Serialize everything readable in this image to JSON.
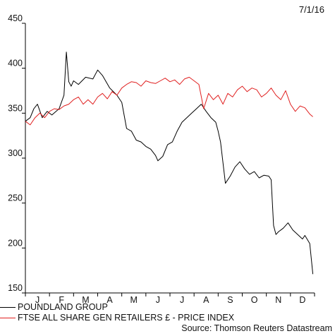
{
  "chart_data": {
    "type": "line",
    "date_label": "7/1/16",
    "x_tick_labels": [
      "J",
      "F",
      "M",
      "A",
      "M",
      "J",
      "J",
      "A",
      "S",
      "O",
      "N",
      "D"
    ],
    "yticks": [
      150,
      200,
      250,
      300,
      350,
      400,
      450
    ],
    "ylim": [
      150,
      450
    ],
    "grid": false,
    "series": [
      {
        "name": "POUNDLAND GROUP",
        "color": "#000000",
        "x": [
          0,
          0.2,
          0.35,
          0.5,
          0.7,
          0.9,
          1.1,
          1.4,
          1.6,
          1.7,
          1.8,
          1.9,
          2.0,
          2.2,
          2.5,
          2.8,
          3.0,
          3.2,
          3.5,
          3.8,
          4.0,
          4.2,
          4.4,
          4.6,
          4.8,
          5.0,
          5.2,
          5.4,
          5.5,
          5.7,
          5.9,
          6.1,
          6.3,
          6.5,
          6.7,
          6.9,
          7.1,
          7.3,
          7.5,
          7.7,
          7.9,
          8.0,
          8.1,
          8.3,
          8.5,
          8.7,
          8.9,
          9.1,
          9.3,
          9.5,
          9.7,
          9.9,
          10.1,
          10.2,
          10.3,
          10.4,
          10.5,
          10.7,
          10.9,
          11.1,
          11.3,
          11.5,
          11.6,
          11.8,
          11.93
        ],
        "values": [
          341,
          345,
          355,
          360,
          345,
          352,
          348,
          355,
          370,
          418,
          385,
          380,
          386,
          382,
          390,
          388,
          398,
          392,
          378,
          370,
          362,
          333,
          330,
          320,
          318,
          313,
          310,
          303,
          297,
          302,
          315,
          318,
          330,
          340,
          345,
          350,
          355,
          360,
          352,
          345,
          340,
          330,
          318,
          272,
          280,
          290,
          296,
          288,
          282,
          285,
          278,
          281,
          280,
          276,
          225,
          215,
          218,
          222,
          228,
          220,
          215,
          210,
          214,
          205,
          171
        ]
      },
      {
        "name": "FTSE ALL SHARE GEN RETAILERS £ - PRICE INDEX",
        "color": "#e02020",
        "x": [
          0,
          0.2,
          0.4,
          0.6,
          0.8,
          1.0,
          1.2,
          1.4,
          1.6,
          1.8,
          2.0,
          2.2,
          2.4,
          2.6,
          2.8,
          3.0,
          3.2,
          3.4,
          3.6,
          3.8,
          4.0,
          4.2,
          4.4,
          4.6,
          4.8,
          5.0,
          5.2,
          5.4,
          5.6,
          5.8,
          6.0,
          6.2,
          6.4,
          6.6,
          6.8,
          7.0,
          7.2,
          7.4,
          7.6,
          7.8,
          8.0,
          8.2,
          8.4,
          8.6,
          8.8,
          9.0,
          9.2,
          9.4,
          9.6,
          9.8,
          10.0,
          10.2,
          10.4,
          10.6,
          10.8,
          11.0,
          11.2,
          11.4,
          11.6,
          11.8,
          11.93
        ],
        "values": [
          341,
          337,
          345,
          350,
          345,
          352,
          355,
          354,
          358,
          360,
          365,
          368,
          360,
          365,
          360,
          368,
          372,
          366,
          374,
          370,
          378,
          382,
          385,
          384,
          380,
          386,
          384,
          383,
          386,
          389,
          385,
          387,
          382,
          388,
          390,
          386,
          382,
          355,
          372,
          365,
          370,
          360,
          372,
          368,
          376,
          380,
          374,
          378,
          376,
          368,
          372,
          378,
          370,
          365,
          375,
          360,
          352,
          358,
          356,
          349,
          346
        ]
      }
    ]
  },
  "legend": {
    "items": [
      {
        "label": "POUNDLAND GROUP",
        "color": "#000000"
      },
      {
        "label": "FTSE ALL SHARE GEN RETAILERS £ - PRICE INDEX",
        "color": "#e02020"
      }
    ]
  },
  "source_label": "Source: Thomson Reuters Datastream"
}
